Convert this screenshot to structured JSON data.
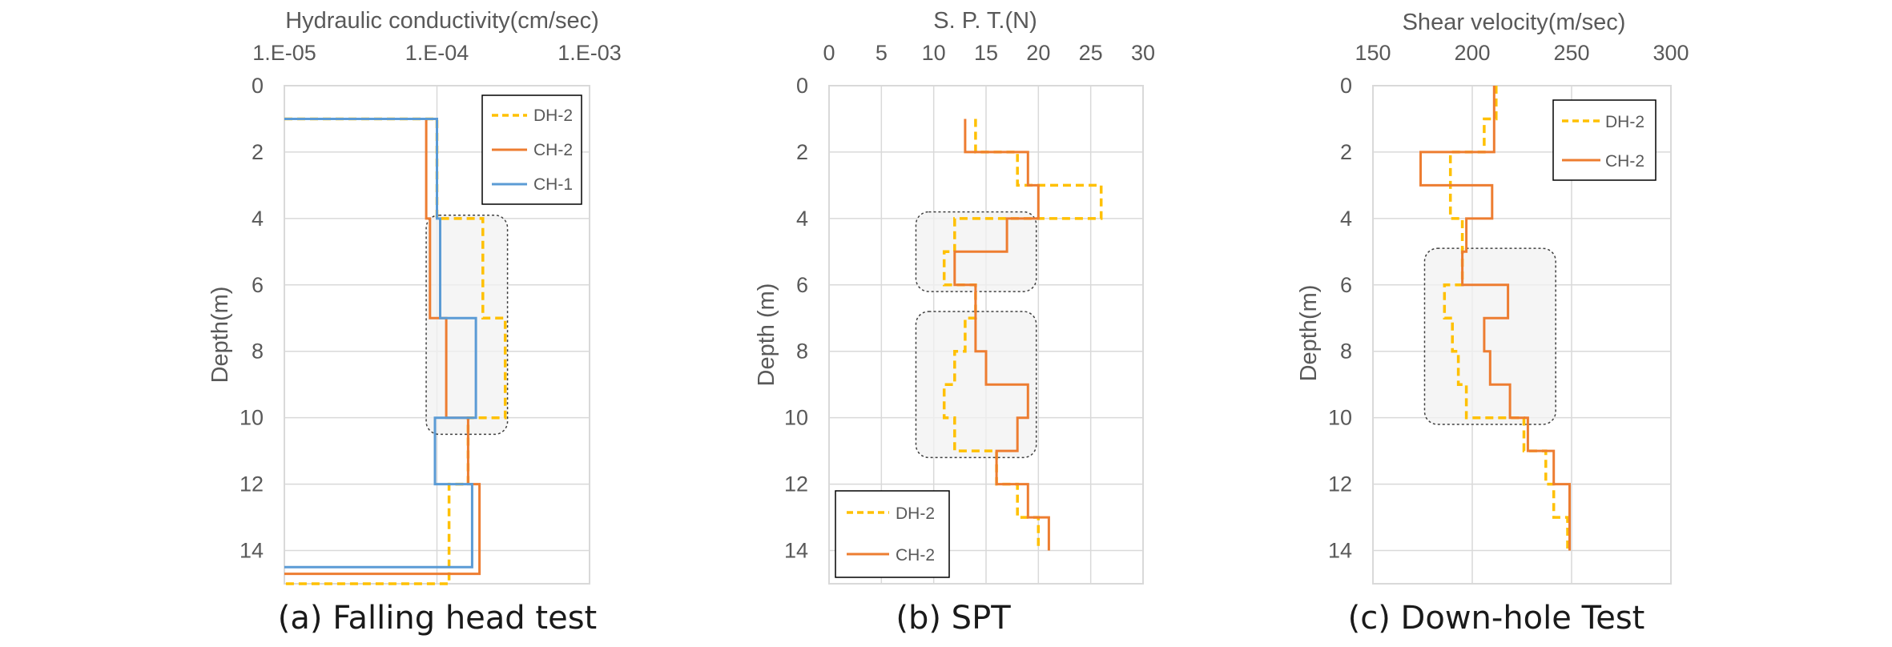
{
  "colors": {
    "DH-2": "#FFC000",
    "CH-2": "#ED7D31",
    "CH-1": "#5B9BD5"
  },
  "chart_data": [
    {
      "type": "line",
      "title": "Hydraulic conductivity(cm/sec)",
      "xlabel": "Hydraulic conductivity(cm/sec)",
      "ylabel": "Depth(m)",
      "caption": "(a) Falling head test",
      "xscale": "log",
      "xlim": [
        1e-05,
        0.001
      ],
      "xticks": [
        1e-05,
        0.0001,
        0.001
      ],
      "xtick_labels": [
        "1.E-05",
        "1.E-04",
        "1.E-03"
      ],
      "ylim": [
        0,
        15
      ],
      "yticks": [
        0,
        2,
        4,
        6,
        8,
        10,
        12,
        14
      ],
      "ytick_labels": [
        "0",
        "2",
        "4",
        "6",
        "8",
        "10",
        "12",
        "14"
      ],
      "legend_position": "top-right",
      "highlight": {
        "depth_range": [
          3.9,
          10.5
        ],
        "x_range": [
          8.5e-05,
          0.00029
        ]
      },
      "series": [
        {
          "name": "DH-2",
          "dash": true,
          "points": [
            [
              1e-05,
              1
            ],
            [
              0.0001,
              1
            ],
            [
              0.0001,
              4
            ],
            [
              0.0002,
              4
            ],
            [
              0.0002,
              7
            ],
            [
              0.00028,
              7
            ],
            [
              0.00028,
              10
            ],
            [
              0.00016,
              10
            ],
            [
              0.00016,
              12
            ],
            [
              0.00012,
              12
            ],
            [
              0.00012,
              15
            ],
            [
              1e-05,
              15
            ]
          ]
        },
        {
          "name": "CH-2",
          "dash": false,
          "points": [
            [
              1e-05,
              1
            ],
            [
              8.5e-05,
              1
            ],
            [
              8.5e-05,
              4
            ],
            [
              9e-05,
              4
            ],
            [
              9e-05,
              7
            ],
            [
              0.000115,
              7
            ],
            [
              0.000115,
              10
            ],
            [
              0.00016,
              10
            ],
            [
              0.00016,
              12
            ],
            [
              0.00019,
              12
            ],
            [
              0.00019,
              14.7
            ],
            [
              1e-05,
              14.7
            ]
          ]
        },
        {
          "name": "CH-1",
          "dash": false,
          "points": [
            [
              1e-05,
              1
            ],
            [
              0.0001,
              1
            ],
            [
              0.0001,
              4
            ],
            [
              0.000105,
              4
            ],
            [
              0.000105,
              7
            ],
            [
              0.00018,
              7
            ],
            [
              0.00018,
              10
            ],
            [
              9.7e-05,
              10
            ],
            [
              9.7e-05,
              12
            ],
            [
              0.00017,
              12
            ],
            [
              0.00017,
              14.5
            ],
            [
              1e-05,
              14.5
            ]
          ]
        }
      ]
    },
    {
      "type": "line",
      "title": "S. P. T.(N)",
      "xlabel": "S. P. T.(N)",
      "ylabel": "Depth (m)",
      "caption": "(b) SPT",
      "xscale": "linear",
      "xlim": [
        0,
        30
      ],
      "xticks": [
        0,
        5,
        10,
        15,
        20,
        25,
        30
      ],
      "xtick_labels": [
        "0",
        "5",
        "10",
        "15",
        "20",
        "25",
        "30"
      ],
      "ylim": [
        0,
        15
      ],
      "yticks": [
        0,
        2,
        4,
        6,
        8,
        10,
        12,
        14
      ],
      "ytick_labels": [
        "0",
        "2",
        "4",
        "6",
        "8",
        "10",
        "12",
        "14"
      ],
      "legend_position": "bottom-left",
      "highlights": [
        {
          "depth_range": [
            3.8,
            6.2
          ],
          "x_range": [
            8.3,
            19.8
          ]
        },
        {
          "depth_range": [
            6.8,
            11.2
          ],
          "x_range": [
            8.3,
            19.8
          ]
        }
      ],
      "series": [
        {
          "name": "DH-2",
          "dash": true,
          "points": [
            [
              14,
              1
            ],
            [
              14,
              2
            ],
            [
              18,
              2
            ],
            [
              18,
              3
            ],
            [
              26,
              3
            ],
            [
              26,
              4
            ],
            [
              12,
              4
            ],
            [
              12,
              5
            ],
            [
              11,
              5
            ],
            [
              11,
              6
            ],
            [
              14,
              6
            ],
            [
              14,
              7
            ],
            [
              13,
              7
            ],
            [
              13,
              8
            ],
            [
              12,
              8
            ],
            [
              12,
              9
            ],
            [
              11,
              9
            ],
            [
              11,
              10
            ],
            [
              12,
              10
            ],
            [
              12,
              11
            ],
            [
              16,
              11
            ],
            [
              16,
              12
            ],
            [
              18,
              12
            ],
            [
              18,
              13
            ],
            [
              20,
              13
            ],
            [
              20,
              14
            ]
          ]
        },
        {
          "name": "CH-2",
          "dash": false,
          "points": [
            [
              13,
              1
            ],
            [
              13,
              2
            ],
            [
              19,
              2
            ],
            [
              19,
              3
            ],
            [
              20,
              3
            ],
            [
              20,
              4
            ],
            [
              17,
              4
            ],
            [
              17,
              5
            ],
            [
              12,
              5
            ],
            [
              12,
              6
            ],
            [
              14,
              6
            ],
            [
              14,
              8
            ],
            [
              15,
              8
            ],
            [
              15,
              9
            ],
            [
              19,
              9
            ],
            [
              19,
              10
            ],
            [
              18,
              10
            ],
            [
              18,
              11
            ],
            [
              16,
              11
            ],
            [
              16,
              12
            ],
            [
              19,
              12
            ],
            [
              19,
              13
            ],
            [
              21,
              13
            ],
            [
              21,
              14
            ]
          ]
        }
      ]
    },
    {
      "type": "line",
      "title": "Shear velocity(m/sec)",
      "xlabel": "Shear velocity(m/sec)",
      "ylabel": "Depth(m)",
      "caption": "(c) Down-hole Test",
      "xscale": "linear",
      "xlim": [
        150,
        300
      ],
      "xticks": [
        150,
        200,
        250,
        300
      ],
      "xtick_labels": [
        "150",
        "200",
        "250",
        "300"
      ],
      "ylim": [
        0,
        15
      ],
      "yticks": [
        0,
        2,
        4,
        6,
        8,
        10,
        12,
        14
      ],
      "ytick_labels": [
        "0",
        "2",
        "4",
        "6",
        "8",
        "10",
        "12",
        "14"
      ],
      "legend_position": "top-right",
      "highlight": {
        "depth_range": [
          4.9,
          10.2
        ],
        "x_range": [
          176,
          242
        ]
      },
      "series": [
        {
          "name": "DH-2",
          "dash": true,
          "points": [
            [
              212,
              0
            ],
            [
              212,
              1
            ],
            [
              206,
              1
            ],
            [
              206,
              2
            ],
            [
              189,
              2
            ],
            [
              189,
              4
            ],
            [
              195,
              4
            ],
            [
              195,
              6
            ],
            [
              186,
              6
            ],
            [
              186,
              7
            ],
            [
              190,
              7
            ],
            [
              190,
              8
            ],
            [
              193,
              8
            ],
            [
              193,
              9
            ],
            [
              197,
              9
            ],
            [
              197,
              10
            ],
            [
              226,
              10
            ],
            [
              226,
              11
            ],
            [
              237,
              11
            ],
            [
              237,
              12
            ],
            [
              241,
              12
            ],
            [
              241,
              13
            ],
            [
              248,
              13
            ],
            [
              248,
              14
            ]
          ]
        },
        {
          "name": "CH-2",
          "dash": false,
          "points": [
            [
              211,
              0
            ],
            [
              211,
              2
            ],
            [
              174,
              2
            ],
            [
              174,
              3
            ],
            [
              210,
              3
            ],
            [
              210,
              4
            ],
            [
              197,
              4
            ],
            [
              197,
              5
            ],
            [
              195,
              5
            ],
            [
              195,
              6
            ],
            [
              218,
              6
            ],
            [
              218,
              7
            ],
            [
              206,
              7
            ],
            [
              206,
              8
            ],
            [
              209,
              8
            ],
            [
              209,
              9
            ],
            [
              219,
              9
            ],
            [
              219,
              10
            ],
            [
              228,
              10
            ],
            [
              228,
              11
            ],
            [
              241,
              11
            ],
            [
              241,
              12
            ],
            [
              249,
              12
            ],
            [
              249,
              14
            ]
          ]
        }
      ]
    }
  ]
}
